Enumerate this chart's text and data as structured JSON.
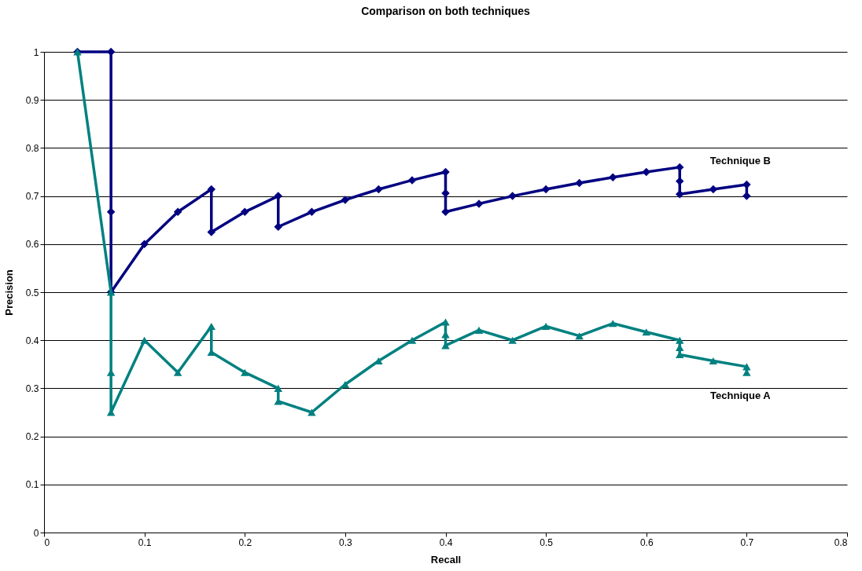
{
  "chart_data": {
    "type": "line",
    "title": "Comparison on both techniques",
    "xlabel": "Recall",
    "ylabel": "Precision",
    "xlim": [
      0,
      0.8
    ],
    "xticks": [
      0,
      0.1,
      0.2,
      0.3,
      0.4,
      0.5,
      0.6,
      0.7,
      0.8
    ],
    "ylim": [
      0,
      1
    ],
    "yticks": [
      0,
      0.1,
      0.2,
      0.3,
      0.4,
      0.5,
      0.6,
      0.7,
      0.8,
      0.9,
      1
    ],
    "grid": "y",
    "legend": false,
    "line_style": "solid",
    "series": [
      {
        "name": "Technique B",
        "color": "#000080",
        "marker": "diamond",
        "x": [
          0.0333,
          0.0667,
          0.0667,
          0.0667,
          0.1,
          0.1333,
          0.1667,
          0.1667,
          0.2,
          0.2333,
          0.2333,
          0.2667,
          0.3,
          0.3333,
          0.3667,
          0.4,
          0.4,
          0.4,
          0.4333,
          0.4667,
          0.5,
          0.5333,
          0.5667,
          0.6,
          0.6333,
          0.6333,
          0.6333,
          0.6667,
          0.7,
          0.7
        ],
        "values": [
          1,
          1,
          0.667,
          0.5,
          0.6,
          0.667,
          0.714,
          0.625,
          0.667,
          0.7,
          0.636,
          0.667,
          0.692,
          0.714,
          0.733,
          0.75,
          0.706,
          0.667,
          0.684,
          0.7,
          0.714,
          0.727,
          0.739,
          0.75,
          0.76,
          0.731,
          0.704,
          0.714,
          0.724,
          0.7
        ]
      },
      {
        "name": "Technique A",
        "color": "#008080",
        "marker": "triangle",
        "x": [
          0.0333,
          0.0667,
          0.0667,
          0.0667,
          0.1,
          0.1333,
          0.1667,
          0.1667,
          0.2,
          0.2333,
          0.2333,
          0.2667,
          0.3,
          0.3333,
          0.3667,
          0.4,
          0.4,
          0.4,
          0.4333,
          0.4667,
          0.5,
          0.5333,
          0.5667,
          0.6,
          0.6333,
          0.6333,
          0.6333,
          0.6667,
          0.7,
          0.7
        ],
        "values": [
          1,
          0.5,
          0.333,
          0.25,
          0.4,
          0.333,
          0.429,
          0.375,
          0.333,
          0.3,
          0.273,
          0.25,
          0.308,
          0.357,
          0.4,
          0.438,
          0.412,
          0.389,
          0.421,
          0.4,
          0.429,
          0.409,
          0.435,
          0.417,
          0.4,
          0.385,
          0.37,
          0.357,
          0.345,
          0.333
        ]
      }
    ]
  }
}
